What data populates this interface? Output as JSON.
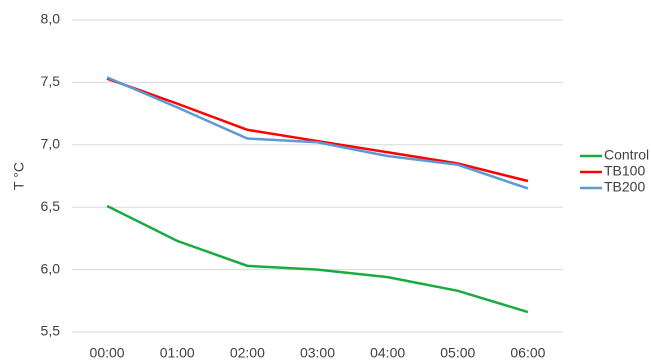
{
  "chart_data": {
    "type": "line",
    "y_label": "T °C",
    "categories": [
      "00:00",
      "01:00",
      "02:00",
      "03:00",
      "04:00",
      "05:00",
      "06:00"
    ],
    "series": [
      {
        "name": "Control",
        "color": "#1aab40",
        "values": [
          6.51,
          6.23,
          6.03,
          6.0,
          5.94,
          5.83,
          5.66
        ]
      },
      {
        "name": "TB100",
        "color": "#ff0000",
        "values": [
          7.53,
          7.33,
          7.12,
          7.03,
          6.94,
          6.85,
          6.71
        ]
      },
      {
        "name": "TB200",
        "color": "#5b9bd5",
        "values": [
          7.54,
          7.3,
          7.05,
          7.02,
          6.91,
          6.84,
          6.65
        ]
      }
    ],
    "ylim": [
      5.5,
      8.0
    ],
    "yticks": [
      {
        "value": 5.5,
        "label": "5,5"
      },
      {
        "value": 6.0,
        "label": "6,0"
      },
      {
        "value": 6.5,
        "label": "6,5"
      },
      {
        "value": 7.0,
        "label": "7,0"
      },
      {
        "value": 7.5,
        "label": "7,5"
      },
      {
        "value": 8.0,
        "label": "8,0"
      }
    ],
    "grid": true,
    "legend": "right"
  }
}
